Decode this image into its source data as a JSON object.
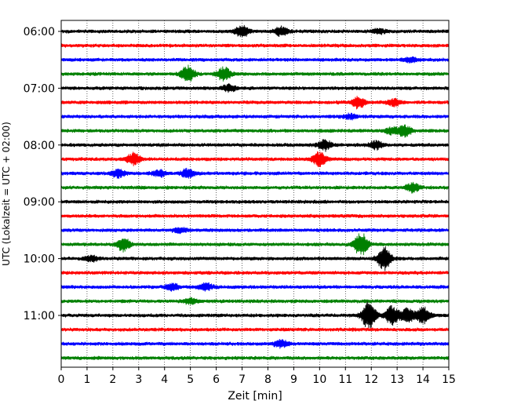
{
  "chart_data": {
    "type": "line",
    "title": "",
    "xlabel": "Zeit  [min]",
    "ylabel": "UTC (Lokalzeit = UTC + 02:00)",
    "xlim": [
      0,
      15
    ],
    "x_ticks": [
      0,
      1,
      2,
      3,
      4,
      5,
      6,
      7,
      8,
      9,
      10,
      11,
      12,
      13,
      14,
      15
    ],
    "x_tick_labels": [
      "0",
      "1",
      "2",
      "3",
      "4",
      "5",
      "6",
      "7",
      "8",
      "9",
      "10",
      "11",
      "12",
      "13",
      "14",
      "15"
    ],
    "y_tick_labels": [
      "06:00",
      "07:00",
      "08:00",
      "09:00",
      "10:00",
      "11:00"
    ],
    "y_tick_trace_index": [
      0,
      4,
      8,
      12,
      16,
      20
    ],
    "vertical_grid": "dotted",
    "trace_interval_minutes": 15,
    "color_cycle": [
      "#000000",
      "#ff0000",
      "#0000ff",
      "#008000"
    ],
    "series": [
      {
        "start": "06:00",
        "color": "#000000",
        "events": [
          {
            "t": 7.0,
            "amp": 0.5
          },
          {
            "t": 8.5,
            "amp": 0.35
          },
          {
            "t": 12.3,
            "amp": 0.2
          }
        ]
      },
      {
        "start": "06:15",
        "color": "#ff0000",
        "events": []
      },
      {
        "start": "06:30",
        "color": "#0000ff",
        "events": [
          {
            "t": 13.5,
            "amp": 0.2
          }
        ]
      },
      {
        "start": "06:45",
        "color": "#008000",
        "events": [
          {
            "t": 4.9,
            "amp": 0.7
          },
          {
            "t": 6.3,
            "amp": 0.6
          }
        ]
      },
      {
        "start": "07:00",
        "color": "#000000",
        "events": [
          {
            "t": 6.5,
            "amp": 0.3
          }
        ]
      },
      {
        "start": "07:15",
        "color": "#ff0000",
        "events": [
          {
            "t": 11.5,
            "amp": 0.5
          },
          {
            "t": 12.9,
            "amp": 0.3
          }
        ]
      },
      {
        "start": "07:30",
        "color": "#0000ff",
        "events": [
          {
            "t": 11.2,
            "amp": 0.2
          }
        ]
      },
      {
        "start": "07:45",
        "color": "#008000",
        "events": [
          {
            "t": 12.8,
            "amp": 0.3
          },
          {
            "t": 13.3,
            "amp": 0.45
          }
        ]
      },
      {
        "start": "08:00",
        "color": "#000000",
        "events": [
          {
            "t": 10.2,
            "amp": 0.45
          },
          {
            "t": 12.2,
            "amp": 0.35
          }
        ]
      },
      {
        "start": "08:15",
        "color": "#ff0000",
        "events": [
          {
            "t": 2.8,
            "amp": 0.5
          },
          {
            "t": 10.0,
            "amp": 0.6
          }
        ]
      },
      {
        "start": "08:30",
        "color": "#0000ff",
        "events": [
          {
            "t": 2.2,
            "amp": 0.35
          },
          {
            "t": 3.8,
            "amp": 0.3
          },
          {
            "t": 4.9,
            "amp": 0.4
          }
        ]
      },
      {
        "start": "08:45",
        "color": "#008000",
        "events": [
          {
            "t": 13.6,
            "amp": 0.4
          }
        ]
      },
      {
        "start": "09:00",
        "color": "#000000",
        "events": []
      },
      {
        "start": "09:15",
        "color": "#ff0000",
        "events": []
      },
      {
        "start": "09:30",
        "color": "#0000ff",
        "events": [
          {
            "t": 4.6,
            "amp": 0.2
          }
        ]
      },
      {
        "start": "09:45",
        "color": "#008000",
        "events": [
          {
            "t": 2.4,
            "amp": 0.55
          },
          {
            "t": 11.6,
            "amp": 1.0
          }
        ]
      },
      {
        "start": "10:00",
        "color": "#000000",
        "events": [
          {
            "t": 1.2,
            "amp": 0.25
          },
          {
            "t": 12.5,
            "amp": 1.0
          }
        ]
      },
      {
        "start": "10:15",
        "color": "#ff0000",
        "events": []
      },
      {
        "start": "10:30",
        "color": "#0000ff",
        "events": [
          {
            "t": 4.3,
            "amp": 0.3
          },
          {
            "t": 5.6,
            "amp": 0.3
          }
        ]
      },
      {
        "start": "10:45",
        "color": "#008000",
        "events": [
          {
            "t": 5.0,
            "amp": 0.25
          }
        ]
      },
      {
        "start": "11:00",
        "color": "#000000",
        "events": [
          {
            "t": 11.9,
            "amp": 1.2
          },
          {
            "t": 12.8,
            "amp": 0.8
          },
          {
            "t": 13.4,
            "amp": 0.6
          },
          {
            "t": 14.0,
            "amp": 0.7
          }
        ]
      },
      {
        "start": "11:15",
        "color": "#ff0000",
        "events": []
      },
      {
        "start": "11:30",
        "color": "#0000ff",
        "events": [
          {
            "t": 8.5,
            "amp": 0.3
          }
        ]
      },
      {
        "start": "11:45",
        "color": "#008000",
        "events": []
      }
    ]
  }
}
